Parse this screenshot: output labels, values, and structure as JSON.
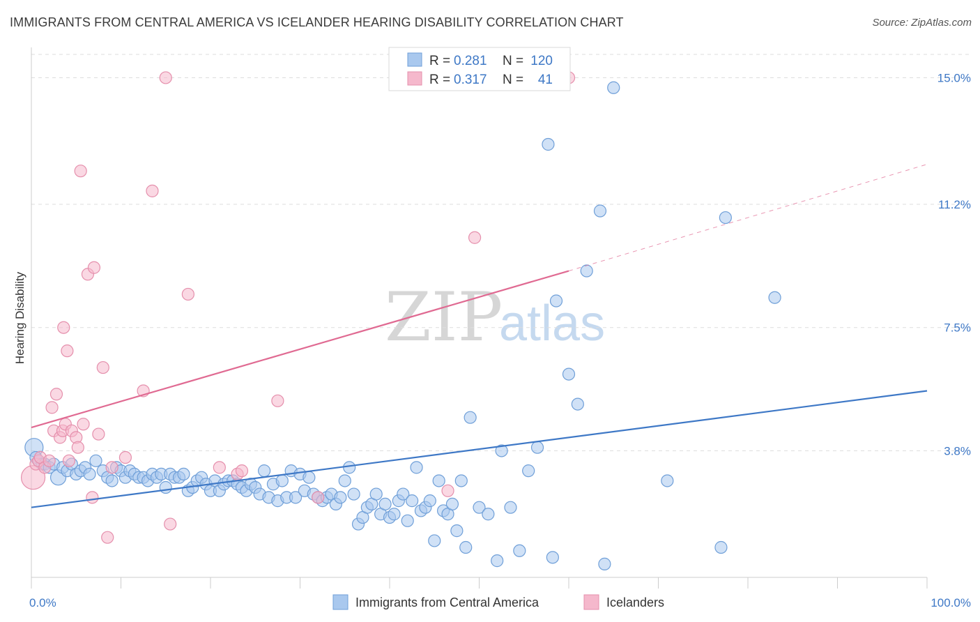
{
  "title": "IMMIGRANTS FROM CENTRAL AMERICA VS ICELANDER HEARING DISABILITY CORRELATION CHART",
  "source": "Source: ZipAtlas.com",
  "watermark": {
    "zip": "ZIP",
    "atlas": "atlas"
  },
  "colors": {
    "blue": "#3e78c6",
    "blue_fill": "#a9c8ee",
    "pink": "#e06a92",
    "pink_fill": "#f5b8cc",
    "grid": "#dddddd"
  },
  "legend": {
    "rows": [
      {
        "r_label": "R =",
        "r_value": "0.281",
        "n_label": "N =",
        "n_value": "120"
      },
      {
        "r_label": "R =",
        "r_value": "0.317",
        "n_label": "N =",
        "n_value": "41"
      }
    ]
  },
  "bottom_legend": [
    "Immigrants from Central America",
    "Icelanders"
  ],
  "chart_data": {
    "type": "scatter",
    "xlabel": "",
    "ylabel": "Hearing Disability",
    "xlim": [
      0,
      100
    ],
    "ylim": [
      0,
      15.7
    ],
    "x_tick_labels": [
      {
        "value": 0,
        "label": "0.0%"
      },
      {
        "value": 100,
        "label": "100.0%"
      }
    ],
    "y_tick_labels": [
      {
        "value": 3.8,
        "label": "3.8%"
      },
      {
        "value": 7.5,
        "label": "7.5%"
      },
      {
        "value": 11.2,
        "label": "11.2%"
      },
      {
        "value": 15.0,
        "label": "15.0%"
      }
    ],
    "grid": "horizontal dashed",
    "series": [
      {
        "name": "Immigrants from Central America",
        "color": "#3e78c6",
        "trend": {
          "x": [
            0,
            100
          ],
          "y": [
            2.1,
            5.6
          ]
        },
        "points": [
          [
            0.3,
            3.9
          ],
          [
            0.5,
            3.6
          ],
          [
            0.8,
            3.5
          ],
          [
            1.2,
            3.4
          ],
          [
            1.5,
            3.4
          ],
          [
            2.0,
            3.3
          ],
          [
            2.5,
            3.4
          ],
          [
            3.0,
            3.0
          ],
          [
            3.5,
            3.3
          ],
          [
            4.0,
            3.2
          ],
          [
            4.5,
            3.4
          ],
          [
            5.0,
            3.1
          ],
          [
            5.5,
            3.2
          ],
          [
            6.0,
            3.3
          ],
          [
            6.5,
            3.1
          ],
          [
            7.2,
            3.5
          ],
          [
            8.0,
            3.2
          ],
          [
            8.5,
            3.0
          ],
          [
            9.0,
            2.9
          ],
          [
            9.5,
            3.3
          ],
          [
            10.0,
            3.2
          ],
          [
            10.5,
            3.0
          ],
          [
            11.0,
            3.2
          ],
          [
            11.5,
            3.1
          ],
          [
            12.0,
            3.0
          ],
          [
            12.5,
            3.0
          ],
          [
            13.0,
            2.9
          ],
          [
            13.5,
            3.1
          ],
          [
            14.0,
            3.0
          ],
          [
            14.5,
            3.1
          ],
          [
            15.0,
            2.7
          ],
          [
            15.5,
            3.1
          ],
          [
            16.0,
            3.0
          ],
          [
            16.5,
            3.0
          ],
          [
            17.0,
            3.1
          ],
          [
            17.5,
            2.6
          ],
          [
            18.0,
            2.7
          ],
          [
            18.5,
            2.9
          ],
          [
            19.0,
            3.0
          ],
          [
            19.5,
            2.8
          ],
          [
            20.0,
            2.6
          ],
          [
            20.5,
            2.9
          ],
          [
            21.0,
            2.6
          ],
          [
            21.5,
            2.8
          ],
          [
            22.0,
            2.9
          ],
          [
            22.5,
            2.9
          ],
          [
            23.0,
            2.8
          ],
          [
            23.5,
            2.7
          ],
          [
            24.0,
            2.6
          ],
          [
            24.5,
            2.8
          ],
          [
            25.0,
            2.7
          ],
          [
            25.5,
            2.5
          ],
          [
            26.0,
            3.2
          ],
          [
            26.5,
            2.4
          ],
          [
            27.0,
            2.8
          ],
          [
            27.5,
            2.3
          ],
          [
            28.0,
            2.9
          ],
          [
            28.5,
            2.4
          ],
          [
            29.0,
            3.2
          ],
          [
            29.5,
            2.4
          ],
          [
            30.0,
            3.1
          ],
          [
            30.5,
            2.6
          ],
          [
            31.0,
            3.0
          ],
          [
            31.5,
            2.5
          ],
          [
            32.0,
            2.4
          ],
          [
            32.5,
            2.3
          ],
          [
            33.0,
            2.4
          ],
          [
            33.5,
            2.5
          ],
          [
            34.0,
            2.2
          ],
          [
            34.5,
            2.4
          ],
          [
            35.0,
            2.9
          ],
          [
            35.5,
            3.3
          ],
          [
            36.0,
            2.5
          ],
          [
            36.5,
            1.6
          ],
          [
            37.0,
            1.8
          ],
          [
            37.5,
            2.1
          ],
          [
            38.0,
            2.2
          ],
          [
            38.5,
            2.5
          ],
          [
            39.0,
            1.9
          ],
          [
            39.5,
            2.2
          ],
          [
            40.0,
            1.8
          ],
          [
            40.5,
            1.9
          ],
          [
            41.0,
            2.3
          ],
          [
            41.5,
            2.5
          ],
          [
            42.0,
            1.7
          ],
          [
            42.5,
            2.3
          ],
          [
            43.0,
            3.3
          ],
          [
            43.5,
            2.0
          ],
          [
            44.0,
            2.1
          ],
          [
            44.5,
            2.3
          ],
          [
            45.0,
            1.1
          ],
          [
            45.5,
            2.9
          ],
          [
            46.0,
            2.0
          ],
          [
            46.5,
            1.9
          ],
          [
            47.0,
            2.2
          ],
          [
            47.5,
            1.4
          ],
          [
            48.0,
            2.9
          ],
          [
            48.5,
            0.9
          ],
          [
            49.0,
            4.8
          ],
          [
            50.0,
            2.1
          ],
          [
            51.0,
            1.9
          ],
          [
            52.0,
            0.5
          ],
          [
            52.5,
            3.8
          ],
          [
            53.5,
            2.1
          ],
          [
            54.5,
            0.8
          ],
          [
            55.5,
            3.2
          ],
          [
            56.5,
            3.9
          ],
          [
            57.7,
            13.0
          ],
          [
            58.2,
            0.6
          ],
          [
            58.6,
            8.3
          ],
          [
            60.0,
            6.1
          ],
          [
            61.0,
            5.2
          ],
          [
            62.0,
            9.2
          ],
          [
            63.5,
            11.0
          ],
          [
            64.0,
            0.4
          ],
          [
            65.0,
            14.7
          ],
          [
            71.0,
            2.9
          ],
          [
            77.0,
            0.9
          ],
          [
            77.5,
            10.8
          ],
          [
            83.0,
            8.4
          ]
        ]
      },
      {
        "name": "Icelanders",
        "color": "#e06a92",
        "trend": {
          "x": [
            0,
            60
          ],
          "y": [
            4.5,
            9.2
          ],
          "dashed_extension": {
            "x": [
              60,
              100
            ],
            "y": [
              9.2,
              12.4
            ]
          }
        },
        "points": [
          [
            0.2,
            3.0
          ],
          [
            0.5,
            3.4
          ],
          [
            0.8,
            3.5
          ],
          [
            1.0,
            3.6
          ],
          [
            1.5,
            3.3
          ],
          [
            2.0,
            3.5
          ],
          [
            2.3,
            5.1
          ],
          [
            2.5,
            4.4
          ],
          [
            2.8,
            5.5
          ],
          [
            3.2,
            4.2
          ],
          [
            3.5,
            4.4
          ],
          [
            3.6,
            7.5
          ],
          [
            3.8,
            4.6
          ],
          [
            4.0,
            6.8
          ],
          [
            4.2,
            3.5
          ],
          [
            4.5,
            4.4
          ],
          [
            5.0,
            4.2
          ],
          [
            5.2,
            3.9
          ],
          [
            5.5,
            12.2
          ],
          [
            5.8,
            4.6
          ],
          [
            6.3,
            9.1
          ],
          [
            6.8,
            2.4
          ],
          [
            7.0,
            9.3
          ],
          [
            7.5,
            4.3
          ],
          [
            8.0,
            6.3
          ],
          [
            8.5,
            1.2
          ],
          [
            9.0,
            3.3
          ],
          [
            10.5,
            3.6
          ],
          [
            12.5,
            5.6
          ],
          [
            13.5,
            11.6
          ],
          [
            15.0,
            15.0
          ],
          [
            15.5,
            1.6
          ],
          [
            17.5,
            8.5
          ],
          [
            21.0,
            3.3
          ],
          [
            23.0,
            3.1
          ],
          [
            23.5,
            3.2
          ],
          [
            27.5,
            5.3
          ],
          [
            32.0,
            2.4
          ],
          [
            46.5,
            2.6
          ],
          [
            49.5,
            10.2
          ],
          [
            60.0,
            15.0
          ]
        ]
      }
    ]
  }
}
